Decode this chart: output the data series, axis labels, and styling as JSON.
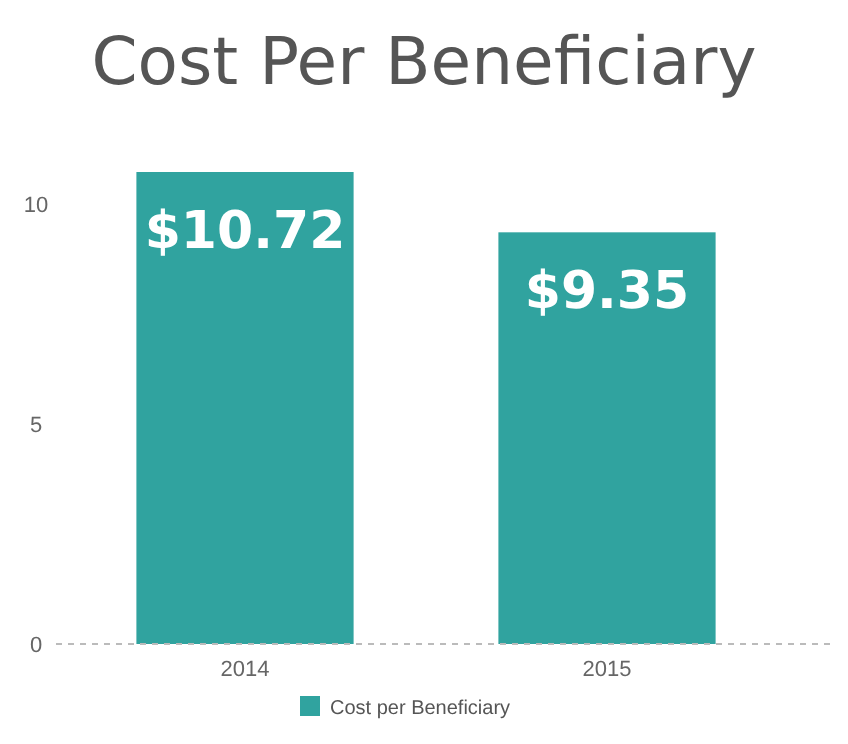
{
  "chart_data": {
    "type": "bar",
    "title": "Cost Per Beneficiary",
    "categories": [
      "2014",
      "2015"
    ],
    "series": [
      {
        "name": "Cost per Beneficiary",
        "color": "#30a39f",
        "values": [
          10.72,
          9.35
        ],
        "value_labels": [
          "$10.72",
          "$9.35"
        ]
      }
    ],
    "ylim": [
      0,
      10.72
    ],
    "yticks": [
      0,
      5,
      10
    ],
    "grid": false,
    "legend": "bottom"
  }
}
